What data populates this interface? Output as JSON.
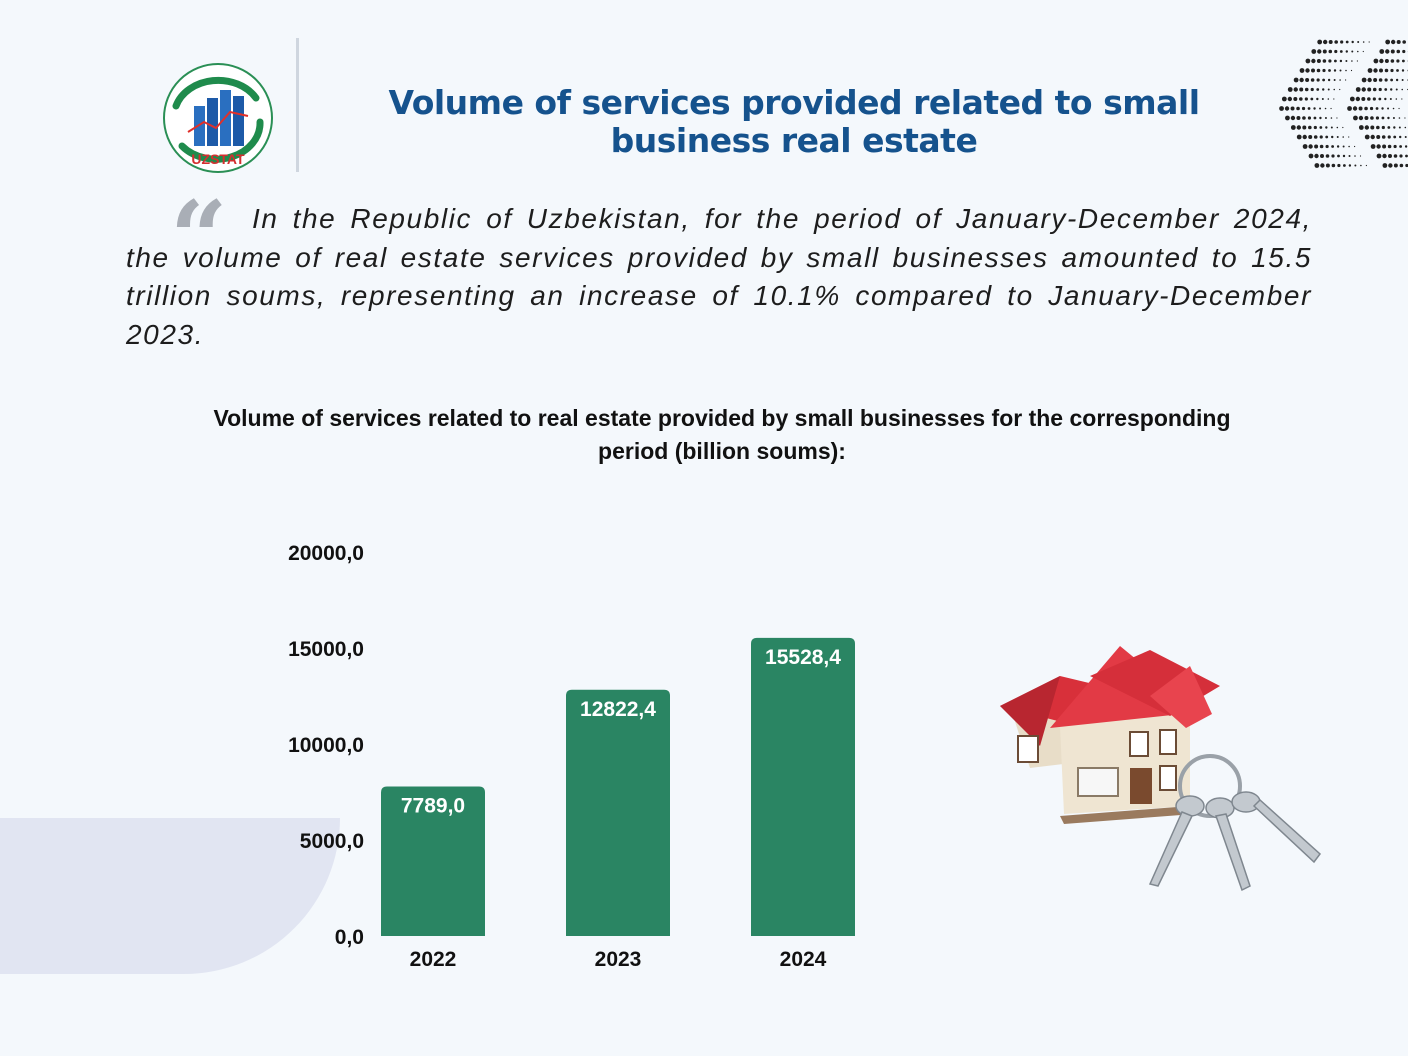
{
  "header": {
    "logo_text": "UZSTAT",
    "title": "Volume of services provided related to small business real estate"
  },
  "intro": {
    "quote_glyph": "“",
    "text": "In the Republic of Uzbekistan, for the period of January-December 2024, the volume of real estate services provided by small businesses amounted to 15.5 trillion soums, representing an increase of 10.1% compared to January-December 2023."
  },
  "colors": {
    "bar": "#2a8563",
    "title": "#15528d",
    "label": "#ffffff"
  },
  "illustration": {
    "icon": "house-with-keys-icon"
  },
  "chart_data": {
    "type": "bar",
    "title": "Volume of services related to real estate provided by small businesses for the corresponding period (billion soums):",
    "categories": [
      "2022",
      "2023",
      "2024"
    ],
    "values": [
      7789.0,
      12822.4,
      15528.4
    ],
    "value_labels": [
      "7789,0",
      "12822,4",
      "15528,4"
    ],
    "y_ticks": [
      0,
      5000,
      10000,
      15000,
      20000
    ],
    "y_tick_labels": [
      "0,0",
      "5000,0",
      "10000,0",
      "15000,0",
      "20000,0"
    ],
    "ylim": [
      0,
      20000
    ],
    "grid": false,
    "legend": "none"
  }
}
